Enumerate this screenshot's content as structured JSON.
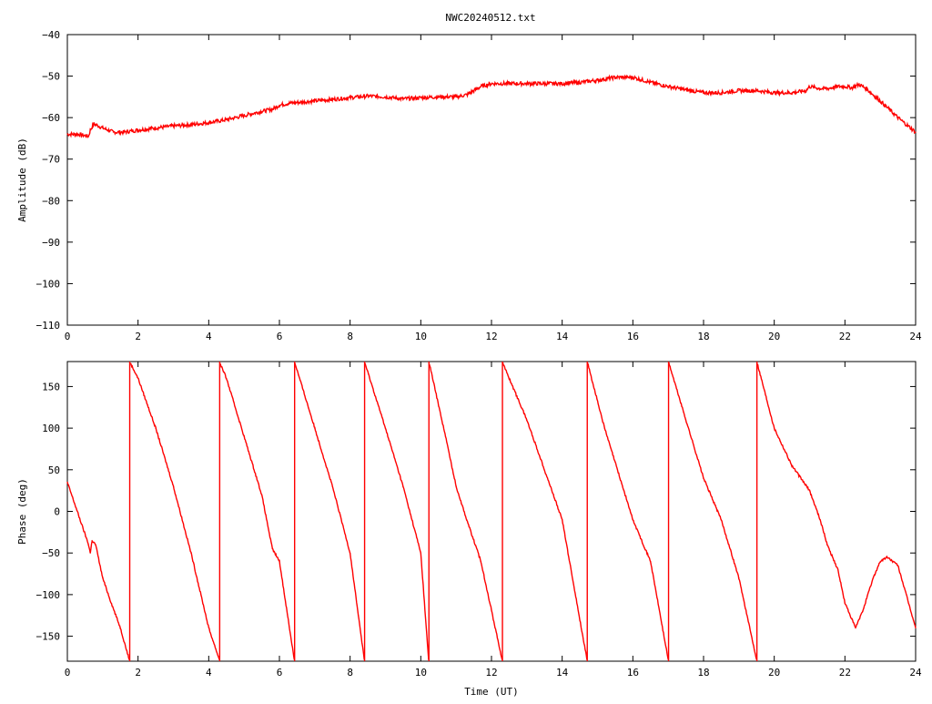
{
  "title": "NWC20240512.txt",
  "colors": {
    "series": "#ff0000",
    "axis": "#000000",
    "background": "#ffffff"
  },
  "chart_data": [
    {
      "type": "line",
      "title": "NWC20240512.txt",
      "xlabel": "",
      "ylabel": "Amplitude (dB)",
      "xlim": [
        0,
        24
      ],
      "ylim": [
        -110,
        -40
      ],
      "xticks": [
        0,
        2,
        4,
        6,
        8,
        10,
        12,
        14,
        16,
        18,
        20,
        22,
        24
      ],
      "yticks": [
        -110,
        -100,
        -90,
        -80,
        -70,
        -60,
        -50,
        -40
      ],
      "xtick_labels": [
        "0",
        "2",
        "4",
        "6",
        "8",
        "10",
        "12",
        "14",
        "16",
        "18",
        "20",
        "22",
        "24"
      ],
      "ytick_labels": [
        "−110",
        "−100",
        "−90",
        "−80",
        "−70",
        "−60",
        "−50",
        "−40"
      ],
      "grid": false,
      "series": [
        {
          "x": [
            0,
            0.3,
            0.6,
            0.65,
            0.75,
            1.0,
            1.3,
            1.6,
            2.0,
            2.5,
            3.0,
            3.5,
            4.0,
            4.5,
            5.0,
            5.5,
            5.8,
            6.0,
            6.3,
            7.0,
            8.0,
            8.5,
            9.0,
            9.5,
            10.0,
            10.5,
            11.0,
            11.3,
            11.7,
            12.0,
            12.5,
            13.0,
            13.5,
            14.0,
            14.5,
            15.0,
            15.5,
            16.0,
            16.5,
            17.0,
            17.5,
            18.0,
            18.5,
            19.0,
            19.5,
            20.0,
            20.5,
            20.9,
            21.0,
            21.3,
            21.5,
            21.8,
            22.0,
            22.2,
            22.4,
            22.6,
            23.0,
            23.5,
            24.0
          ],
          "y": [
            -64,
            -64,
            -64.5,
            -63,
            -61.5,
            -62.5,
            -63.5,
            -63.5,
            -63,
            -62.5,
            -62,
            -61.7,
            -61.2,
            -60.5,
            -59.5,
            -58.5,
            -58,
            -57,
            -56.5,
            -56,
            -55.2,
            -54.8,
            -55,
            -55.5,
            -55.2,
            -55,
            -55,
            -54.5,
            -52.5,
            -51.8,
            -51.8,
            -51.8,
            -51.8,
            -51.8,
            -51.5,
            -51,
            -50.3,
            -50.3,
            -51.5,
            -52.5,
            -53.3,
            -54,
            -54,
            -53.5,
            -53.5,
            -54,
            -54,
            -53.5,
            -52.5,
            -53,
            -53,
            -52.5,
            -52.5,
            -52.8,
            -52,
            -53,
            -56,
            -60,
            -63.5
          ]
        }
      ]
    },
    {
      "type": "line",
      "title": "",
      "xlabel": "Time (UT)",
      "ylabel": "Phase (deg)",
      "xlim": [
        0,
        24
      ],
      "ylim": [
        -180,
        180
      ],
      "xticks": [
        0,
        2,
        4,
        6,
        8,
        10,
        12,
        14,
        16,
        18,
        20,
        22,
        24
      ],
      "yticks": [
        -150,
        -100,
        -50,
        0,
        50,
        100,
        150
      ],
      "xtick_labels": [
        "0",
        "2",
        "4",
        "6",
        "8",
        "10",
        "12",
        "14",
        "16",
        "18",
        "20",
        "22",
        "24"
      ],
      "ytick_labels": [
        "−150",
        "−100",
        "−50",
        "0",
        "50",
        "100",
        "150"
      ],
      "grid": false,
      "phase_wrap": true,
      "series": [
        {
          "x": [
            0,
            0.2,
            0.4,
            0.6,
            0.65,
            0.7,
            0.8,
            1.0,
            1.2,
            1.5,
            1.75,
            1.78,
            1.82,
            2.0,
            2.5,
            3.0,
            3.5,
            4.0,
            4.3,
            4.32,
            4.5,
            5.0,
            5.5,
            5.8,
            6.0,
            6.42,
            6.44,
            7.0,
            7.5,
            8.0,
            8.4,
            8.42,
            9.0,
            9.5,
            10.0,
            10.22,
            10.24,
            10.7,
            11.0,
            11.3,
            11.7,
            12.3,
            12.32,
            13.0,
            14.0,
            14.7,
            14.72,
            15.2,
            16.0,
            16.5,
            17.0,
            17.02,
            17.5,
            18.0,
            18.5,
            19.0,
            19.5,
            19.52,
            20.0,
            20.5,
            21.0,
            21.3,
            21.5,
            21.8,
            22.0,
            22.2,
            22.3,
            22.5,
            22.8,
            23.0,
            23.2,
            23.5,
            24.0
          ],
          "y": [
            35,
            10,
            -15,
            -40,
            -50,
            -35,
            -40,
            -80,
            -105,
            -140,
            -178,
            178,
            175,
            160,
            100,
            30,
            -50,
            -140,
            -178,
            178,
            160,
            90,
            20,
            -45,
            -60,
            -178,
            178,
            100,
            30,
            -50,
            -178,
            178,
            100,
            30,
            -50,
            -178,
            178,
            90,
            30,
            -10,
            -60,
            -178,
            178,
            110,
            -10,
            -178,
            178,
            100,
            -10,
            -60,
            -178,
            178,
            110,
            40,
            -10,
            -80,
            -178,
            178,
            100,
            55,
            25,
            -10,
            -40,
            -70,
            -110,
            -130,
            -140,
            -120,
            -80,
            -60,
            -55,
            -65,
            -140
          ]
        }
      ]
    }
  ]
}
